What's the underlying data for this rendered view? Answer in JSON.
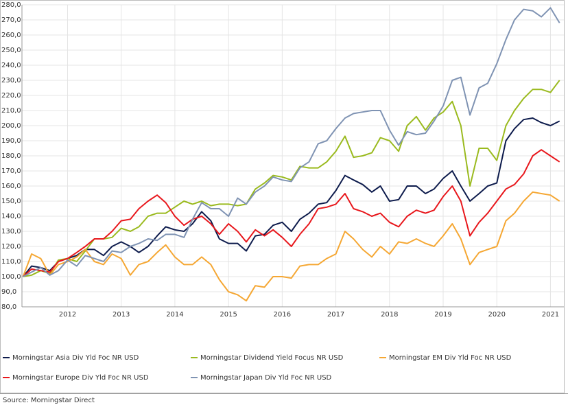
{
  "chart_data": {
    "type": "line",
    "source": "Source: Morningstar Direct",
    "xlim": [
      2011.15,
      2021.25
    ],
    "xticks": [
      2012,
      2013,
      2014,
      2015,
      2016,
      2017,
      2018,
      2019,
      2020,
      2021
    ],
    "ylim": [
      80,
      280
    ],
    "yticks": [
      {
        "value": 80,
        "label": "80,0"
      },
      {
        "value": 90,
        "label": "90,0"
      },
      {
        "value": 100,
        "label": "100,0"
      },
      {
        "value": 110,
        "label": "110,0"
      },
      {
        "value": 120,
        "label": "120,0"
      },
      {
        "value": 130,
        "label": "130,0"
      },
      {
        "value": 140,
        "label": "140,0"
      },
      {
        "value": 150,
        "label": "150,0"
      },
      {
        "value": 160,
        "label": "160,0"
      },
      {
        "value": 170,
        "label": "170,0"
      },
      {
        "value": 180,
        "label": "180,0"
      },
      {
        "value": 190,
        "label": "190,0"
      },
      {
        "value": 200,
        "label": "200,0"
      },
      {
        "value": 210,
        "label": "210,0"
      },
      {
        "value": 220,
        "label": "220,0"
      },
      {
        "value": 230,
        "label": "230,0"
      },
      {
        "value": 240,
        "label": "240,0"
      },
      {
        "value": 250,
        "label": "250,0"
      },
      {
        "value": 260,
        "label": "260,0"
      },
      {
        "value": 270,
        "label": "270,0"
      },
      {
        "value": 280,
        "label": "280,0"
      }
    ],
    "grid": true,
    "legend": "bottom",
    "x": [
      2011.17,
      2011.33,
      2011.5,
      2011.67,
      2011.83,
      2012,
      2012.17,
      2012.33,
      2012.5,
      2012.67,
      2012.83,
      2013,
      2013.17,
      2013.33,
      2013.5,
      2013.67,
      2013.83,
      2014,
      2014.17,
      2014.33,
      2014.5,
      2014.67,
      2014.83,
      2015,
      2015.17,
      2015.33,
      2015.5,
      2015.67,
      2015.83,
      2016,
      2016.17,
      2016.33,
      2016.5,
      2016.67,
      2016.83,
      2017,
      2017.17,
      2017.33,
      2017.5,
      2017.67,
      2017.83,
      2018,
      2018.17,
      2018.33,
      2018.5,
      2018.67,
      2018.83,
      2019,
      2019.17,
      2019.33,
      2019.5,
      2019.67,
      2019.83,
      2020,
      2020.17,
      2020.33,
      2020.5,
      2020.67,
      2020.83,
      2021,
      2021.17
    ],
    "series": [
      {
        "name": "Morningstar Asia Div Yld Foc NR USD",
        "color": "#0d1b4c",
        "values": [
          100,
          107,
          106,
          104,
          110,
          112,
          114,
          118,
          118,
          114,
          120,
          123,
          120,
          116,
          120,
          127,
          133,
          131,
          130,
          135,
          143,
          137,
          125,
          122,
          122,
          117,
          127,
          128,
          134,
          136,
          130,
          138,
          142,
          148,
          149,
          157,
          167,
          164,
          161,
          156,
          160,
          150,
          151,
          160,
          160,
          155,
          158,
          165,
          170,
          160,
          150,
          155,
          160,
          162,
          190,
          198,
          204,
          205,
          202,
          200,
          203
        ]
      },
      {
        "name": "Morningstar Dividend Yield Focus NR USD",
        "color": "#9aba1e",
        "values": [
          100,
          101,
          104,
          102,
          111,
          112,
          110,
          117,
          125,
          125,
          126,
          132,
          130,
          133,
          140,
          142,
          142,
          146,
          150,
          148,
          150,
          147,
          148,
          148,
          147,
          148,
          158,
          162,
          167,
          166,
          164,
          173,
          172,
          172,
          176,
          183,
          193,
          179,
          180,
          182,
          192,
          190,
          183,
          200,
          206,
          197,
          205,
          209,
          216,
          200,
          160,
          185,
          185,
          177,
          200,
          210,
          218,
          224,
          224,
          222,
          230
        ]
      },
      {
        "name": "Morningstar EM Div Yld Foc NR USD",
        "color": "#f5a733",
        "values": [
          100,
          115,
          112,
          101,
          108,
          110,
          113,
          118,
          110,
          108,
          115,
          112,
          101,
          108,
          110,
          116,
          121,
          113,
          108,
          108,
          113,
          108,
          98,
          90,
          88,
          84,
          94,
          93,
          100,
          100,
          99,
          107,
          108,
          108,
          112,
          115,
          130,
          125,
          118,
          113,
          120,
          115,
          123,
          122,
          125,
          122,
          120,
          127,
          135,
          125,
          108,
          116,
          118,
          120,
          137,
          142,
          150,
          156,
          155,
          154,
          150
        ]
      },
      {
        "name": "Morningstar Europe Div Yld Foc NR USD",
        "color": "#e8171c",
        "values": [
          100,
          105,
          104,
          103,
          110,
          112,
          116,
          120,
          125,
          125,
          130,
          137,
          138,
          145,
          150,
          154,
          149,
          140,
          134,
          138,
          140,
          135,
          128,
          135,
          130,
          123,
          131,
          127,
          131,
          126,
          120,
          128,
          135,
          145,
          146,
          148,
          155,
          145,
          143,
          140,
          142,
          136,
          133,
          140,
          144,
          142,
          144,
          153,
          160,
          150,
          127,
          136,
          142,
          150,
          158,
          161,
          168,
          180,
          184,
          180,
          176
        ]
      },
      {
        "name": "Morningstar Japan Div Yld Foc NR USD",
        "color": "#7f93b3",
        "values": [
          100,
          103,
          106,
          101,
          104,
          111,
          107,
          114,
          112,
          110,
          117,
          116,
          120,
          122,
          125,
          124,
          128,
          128,
          126,
          138,
          149,
          145,
          145,
          140,
          152,
          148,
          156,
          160,
          166,
          164,
          163,
          172,
          176,
          188,
          190,
          198,
          205,
          208,
          209,
          210,
          210,
          197,
          187,
          196,
          194,
          195,
          203,
          213,
          230,
          232,
          207,
          225,
          228,
          241,
          257,
          270,
          277,
          276,
          272,
          278,
          268
        ]
      }
    ]
  }
}
